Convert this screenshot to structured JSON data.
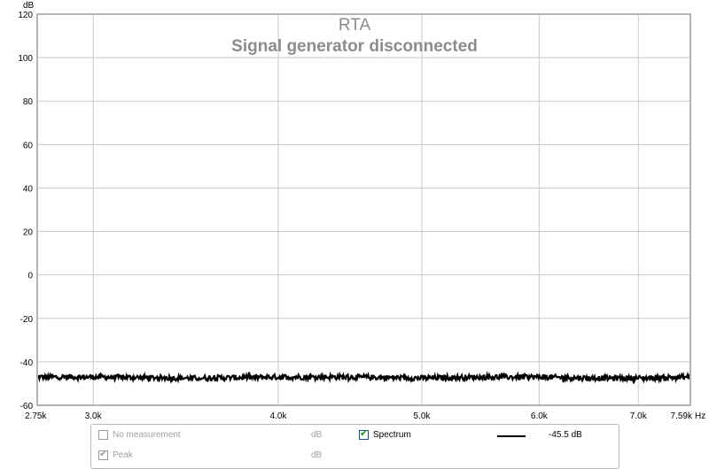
{
  "chart_data": {
    "type": "line",
    "title": "RTA",
    "subtitle": "Signal generator disconnected",
    "ylabel": "dB",
    "xunit": "Hz",
    "ylim": [
      -60,
      120
    ],
    "xlim": [
      2750,
      7590
    ],
    "xscale": "log",
    "grid": true,
    "yticks": [
      {
        "v": 120,
        "t": "120"
      },
      {
        "v": 100,
        "t": "100"
      },
      {
        "v": 80,
        "t": "80"
      },
      {
        "v": 60,
        "t": "60"
      },
      {
        "v": 40,
        "t": "40"
      },
      {
        "v": 20,
        "t": "20"
      },
      {
        "v": 0,
        "t": "0"
      },
      {
        "v": -20,
        "t": "-20"
      },
      {
        "v": -40,
        "t": "-40"
      },
      {
        "v": -60,
        "t": "-60"
      }
    ],
    "xticks": [
      {
        "v": 2750,
        "t": "2.75k"
      },
      {
        "v": 3000,
        "t": "3.0k"
      },
      {
        "v": 4000,
        "t": "4.0k"
      },
      {
        "v": 5000,
        "t": "5.0k"
      },
      {
        "v": 6000,
        "t": "6.0k"
      },
      {
        "v": 7000,
        "t": "7.0k"
      },
      {
        "v": 7590,
        "t": "7.59k"
      }
    ],
    "series": [
      {
        "name": "Spectrum",
        "color": "#000000",
        "level_db": -47,
        "noise_db": 1.2,
        "x": [
          2750,
          3000,
          3500,
          4000,
          4500,
          5000,
          5500,
          6000,
          6500,
          7000,
          7590
        ],
        "values": [
          -47,
          -47,
          -47.5,
          -47,
          -47,
          -47.5,
          -47,
          -47,
          -47.5,
          -47.5,
          -47
        ]
      }
    ]
  },
  "legend": {
    "row1": {
      "left_label": "No measurement",
      "left_unit": "dB",
      "left_checked": false,
      "right_label": "Spectrum",
      "right_checked": true,
      "right_value": "-45.5 dB"
    },
    "row2": {
      "left_label": "Peak",
      "left_unit": "dB",
      "left_checked": true
    }
  }
}
